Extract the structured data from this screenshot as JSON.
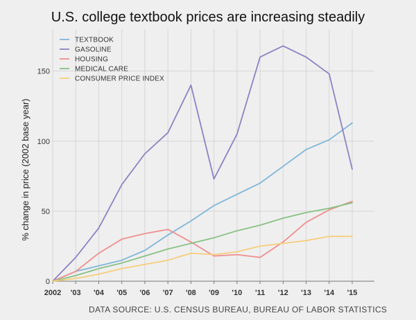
{
  "chart_data": {
    "type": "line",
    "title": "U.S. college textbook prices are increasing steadily",
    "ylabel": "% change in price (2002 base year)",
    "source": "DATA SOURCE: U.S. CENSUS BUREAU, BUREAU OF LABOR STATISTICS",
    "x": [
      2002,
      2003,
      2004,
      2005,
      2006,
      2007,
      2008,
      2009,
      2010,
      2011,
      2012,
      2013,
      2014,
      2015
    ],
    "x_tick_labels": [
      "2002",
      "'03",
      "'04",
      "'05",
      "'06",
      "'07",
      "'08",
      "'09",
      "'10",
      "'11",
      "'12",
      "'13",
      "'14",
      "'15"
    ],
    "y_ticks": [
      0,
      50,
      100,
      150
    ],
    "y_tick_labels": [
      "0",
      "50",
      "100",
      "150"
    ],
    "ylim": [
      0,
      180
    ],
    "grid": true,
    "legend_position": "top-left",
    "series": [
      {
        "name": "TEXTBOOK",
        "color": "#7fb6d9",
        "values": [
          0,
          7,
          11,
          15,
          22,
          33,
          43,
          54,
          62,
          70,
          82,
          94,
          101,
          113
        ]
      },
      {
        "name": "GASOLINE",
        "color": "#8c82c2",
        "values": [
          0,
          17,
          38,
          69,
          91,
          106,
          140,
          73,
          105,
          160,
          168,
          160,
          148,
          80
        ]
      },
      {
        "name": "HOUSING",
        "color": "#f08e8e",
        "values": [
          0,
          7,
          20,
          30,
          34,
          37,
          28,
          18,
          19,
          17,
          28,
          42,
          51,
          57
        ]
      },
      {
        "name": "MEDICAL CARE",
        "color": "#86c183",
        "values": [
          0,
          4,
          9,
          13,
          18,
          23,
          27,
          31,
          36,
          40,
          45,
          49,
          52,
          56
        ]
      },
      {
        "name": "CONSUMER PRICE INDEX",
        "color": "#f7cd7a",
        "values": [
          0,
          2,
          5,
          9,
          12,
          15,
          20,
          19,
          21,
          25,
          27,
          29,
          32,
          32
        ]
      }
    ]
  }
}
